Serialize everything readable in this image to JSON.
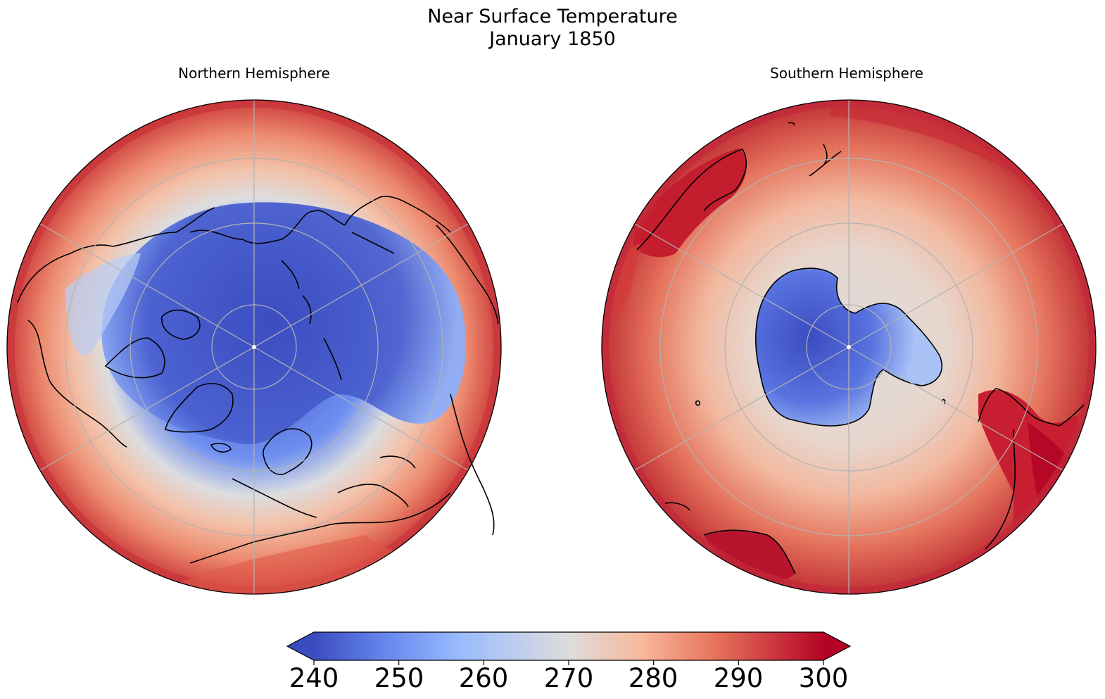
{
  "title": {
    "line1": "Near Surface Temperature",
    "line2": "January 1850"
  },
  "panels": [
    {
      "title": "Northern Hemisphere",
      "pole": "north"
    },
    {
      "title": "Southern Hemisphere",
      "pole": "south"
    }
  ],
  "colorbar": {
    "colormap": "coolwarm",
    "min": 240,
    "max": 300,
    "extend": "both",
    "ticks": [
      "240",
      "250",
      "260",
      "270",
      "280",
      "290",
      "300"
    ],
    "colors": [
      "#3b4cc0",
      "#6788ee",
      "#9abbff",
      "#c9d7f0",
      "#edd1c2",
      "#f7a889",
      "#e26952",
      "#b40426"
    ]
  }
}
